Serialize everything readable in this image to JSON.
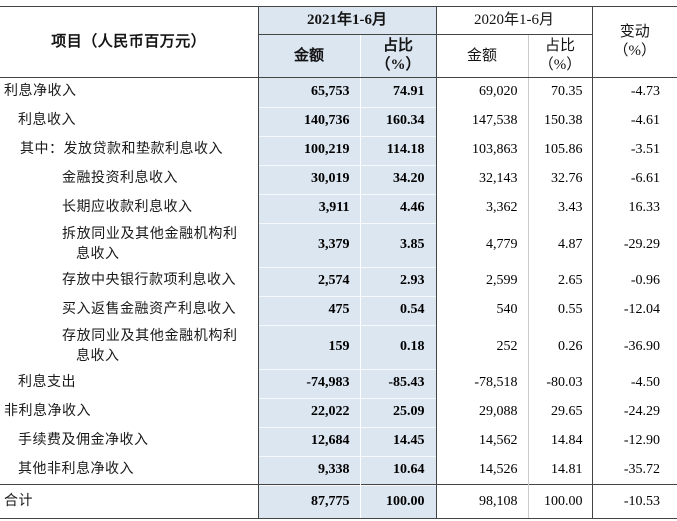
{
  "table": {
    "columns": {
      "item_header": "项目（人民币百万元）",
      "period_2021": "2021年1-6月",
      "period_2020": "2020年1-6月",
      "amount_label_2021": "金额",
      "amount_label_2020": "金额",
      "pct_label": "占比",
      "pct_unit": "（%）",
      "change_label": "变动",
      "change_unit": "（%）"
    },
    "colors": {
      "highlight_bg": "#dce6f1",
      "border_dark": "#444444"
    },
    "rows": [
      {
        "label": "利息净收入",
        "indent": 0,
        "tall": false,
        "amount_2021": "65,753",
        "pct_2021": "74.91",
        "amount_2020": "69,020",
        "pct_2020": "70.35",
        "change": "-4.73"
      },
      {
        "label": "利息收入",
        "indent": 1,
        "tall": false,
        "amount_2021": "140,736",
        "pct_2021": "160.34",
        "amount_2020": "147,538",
        "pct_2020": "150.38",
        "change": "-4.61"
      },
      {
        "label": "其中：发放贷款和垫款利息收入",
        "indent": "qz",
        "tall": false,
        "amount_2021": "100,219",
        "pct_2021": "114.18",
        "amount_2020": "103,863",
        "pct_2020": "105.86",
        "change": "-3.51"
      },
      {
        "label": "金融投资利息收入",
        "indent": 2,
        "tall": false,
        "amount_2021": "30,019",
        "pct_2021": "34.20",
        "amount_2020": "32,143",
        "pct_2020": "32.76",
        "change": "-6.61"
      },
      {
        "label": "长期应收款利息收入",
        "indent": 2,
        "tall": false,
        "amount_2021": "3,911",
        "pct_2021": "4.46",
        "amount_2020": "3,362",
        "pct_2020": "3.43",
        "change": "16.33"
      },
      {
        "label": "拆放同业及其他金融机构利息收入",
        "indent": 2,
        "tall": true,
        "amount_2021": "3,379",
        "pct_2021": "3.85",
        "amount_2020": "4,779",
        "pct_2020": "4.87",
        "change": "-29.29"
      },
      {
        "label": "存放中央银行款项利息收入",
        "indent": 2,
        "tall": false,
        "amount_2021": "2,574",
        "pct_2021": "2.93",
        "amount_2020": "2,599",
        "pct_2020": "2.65",
        "change": "-0.96"
      },
      {
        "label": "买入返售金融资产利息收入",
        "indent": 2,
        "tall": false,
        "amount_2021": "475",
        "pct_2021": "0.54",
        "amount_2020": "540",
        "pct_2020": "0.55",
        "change": "-12.04"
      },
      {
        "label": "存放同业及其他金融机构利息收入",
        "indent": 2,
        "tall": true,
        "amount_2021": "159",
        "pct_2021": "0.18",
        "amount_2020": "252",
        "pct_2020": "0.26",
        "change": "-36.90"
      },
      {
        "label": "利息支出",
        "indent": 1,
        "tall": false,
        "amount_2021": "-74,983",
        "pct_2021": "-85.43",
        "amount_2020": "-78,518",
        "pct_2020": "-80.03",
        "change": "-4.50"
      },
      {
        "label": "非利息净收入",
        "indent": 0,
        "tall": false,
        "amount_2021": "22,022",
        "pct_2021": "25.09",
        "amount_2020": "29,088",
        "pct_2020": "29.65",
        "change": "-24.29"
      },
      {
        "label": "手续费及佣金净收入",
        "indent": 1,
        "tall": false,
        "amount_2021": "12,684",
        "pct_2021": "14.45",
        "amount_2020": "14,562",
        "pct_2020": "14.84",
        "change": "-12.90"
      },
      {
        "label": "其他非利息净收入",
        "indent": 1,
        "tall": false,
        "amount_2021": "9,338",
        "pct_2021": "10.64",
        "amount_2020": "14,526",
        "pct_2020": "14.81",
        "change": "-35.72"
      }
    ],
    "total_row": {
      "label": "合计",
      "amount_2021": "87,775",
      "pct_2021": "100.00",
      "amount_2020": "98,108",
      "pct_2020": "100.00",
      "change": "-10.53"
    }
  }
}
